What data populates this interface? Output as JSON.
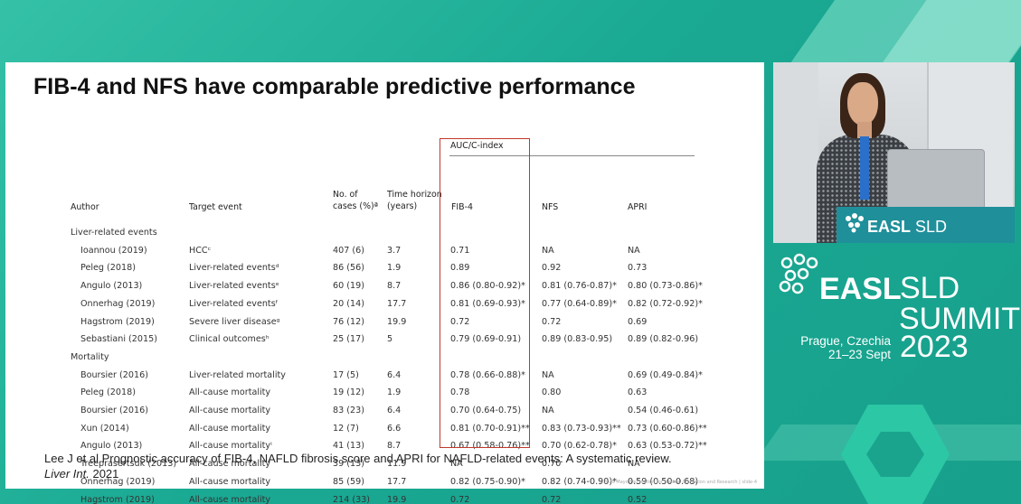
{
  "slide": {
    "title": "FIB-4 and NFS have comparable predictive  performance",
    "headers": {
      "auc_group": "AUC/C-index",
      "author": "Author",
      "target_event": "Target event",
      "cases_line1": "No. of",
      "cases_line2": "cases (%)ª",
      "time_line1": "Time horizon",
      "time_line2": "(years)",
      "fib4": "FIB-4",
      "nfs": "NFS",
      "apri": "APRI"
    },
    "groups": [
      {
        "label": "Liver-related events",
        "rows": [
          {
            "author": "Ioannou (2019)",
            "event": "HCCᶜ",
            "cases": "407 (6)",
            "time": "3.7",
            "fib4": "0.71",
            "nfs": "NA",
            "apri": "NA"
          },
          {
            "author": "Peleg (2018)",
            "event": "Liver-related eventsᵈ",
            "cases": "86 (56)",
            "time": "1.9",
            "fib4": "0.89",
            "nfs": "0.92",
            "apri": "0.73"
          },
          {
            "author": "Angulo (2013)",
            "event": "Liver-related eventsᵉ",
            "cases": "60 (19)",
            "time": "8.7",
            "fib4": "0.86 (0.80-0.92)*",
            "nfs": "0.81 (0.76-0.87)*",
            "apri": "0.80 (0.73-0.86)*"
          },
          {
            "author": "Onnerhag (2019)",
            "event": "Liver-related eventsᶠ",
            "cases": "20 (14)",
            "time": "17.7",
            "fib4": "0.81 (0.69-0.93)*",
            "nfs": "0.77 (0.64-0.89)*",
            "apri": "0.82 (0.72-0.92)*"
          },
          {
            "author": "Hagstrom (2019)",
            "event": "Severe liver diseaseᵍ",
            "cases": "76 (12)",
            "time": "19.9",
            "fib4": "0.72",
            "nfs": "0.72",
            "apri": "0.69"
          },
          {
            "author": "Sebastiani (2015)",
            "event": "Clinical outcomesʰ",
            "cases": "25 (17)",
            "time": "5",
            "fib4": "0.79 (0.69-0.91)",
            "nfs": "0.89 (0.83-0.95)",
            "apri": "0.89 (0.82-0.96)"
          }
        ]
      },
      {
        "label": "Mortality",
        "rows": [
          {
            "author": "Boursier (2016)",
            "event": "Liver-related mortality",
            "cases": "17 (5)",
            "time": "6.4",
            "fib4": "0.78 (0.66-0.88)*",
            "nfs": "NA",
            "apri": "0.69 (0.49-0.84)*"
          },
          {
            "author": "Peleg (2018)",
            "event": "All-cause mortality",
            "cases": "19 (12)",
            "time": "1.9",
            "fib4": "0.78",
            "nfs": "0.80",
            "apri": "0.63"
          },
          {
            "author": "Boursier (2016)",
            "event": "All-cause mortality",
            "cases": "83 (23)",
            "time": "6.4",
            "fib4": "0.70 (0.64-0.75)",
            "nfs": "NA",
            "apri": "0.54 (0.46-0.61)"
          },
          {
            "author": "Xun (2014)",
            "event": "All-cause mortality",
            "cases": "12 (7)",
            "time": "6.6",
            "fib4": "0.81 (0.70-0.91)**",
            "nfs": "0.83 (0.73-0.93)**",
            "apri": "0.73 (0.60-0.86)**"
          },
          {
            "author": "Angulo (2013)",
            "event": "All-cause mortalityⁱ",
            "cases": "41 (13)",
            "time": "8.7",
            "fib4": "0.67 (0.58-0.76)**",
            "nfs": "0.70 (0.62-0.78)*",
            "apri": "0.63 (0.53-0.72)**"
          },
          {
            "author": "Treeprasertsuk (2013)",
            "event": "All-cause mortality",
            "cases": "39 (13)",
            "time": "11.9",
            "fib4": "NA",
            "nfs": "0.70",
            "apri": "NA"
          },
          {
            "author": "Onnerhag (2019)",
            "event": "All-cause mortality",
            "cases": "85 (59)",
            "time": "17.7",
            "fib4": "0.82 (0.75-0.90)*",
            "nfs": "0.82 (0.74-0.90)*",
            "apri": "0.59 (0.50-0.68)"
          },
          {
            "author": "Hagstrom (2019)",
            "event": "All-cause mortality",
            "cases": "214 (33)",
            "time": "19.9",
            "fib4": "0.72",
            "nfs": "0.72",
            "apri": "0.52"
          }
        ]
      }
    ],
    "citation_text": "Lee J et al Prognostic accuracy of FIB-4, NAFLD fibrosis score and APRI for NAFLD-related events: A systematic review.",
    "citation_journal": "Liver Int.",
    "citation_year": " 2021",
    "footer": "©2023 Mayo Foundation for Medical Education and Research  |  slide-4"
  },
  "webcam": {
    "podium_brand": "EASL",
    "podium_sub": "SLD"
  },
  "branding": {
    "org": "EASL",
    "event_line1": "SLD",
    "event_line2": "SUMMIT",
    "year": "2023",
    "city": "Prague, Czechia",
    "dates": "21–23 Sept"
  },
  "colors": {
    "background": "#1aa993",
    "highlight_box": "#c0392b",
    "podium": "#1f8f9a"
  }
}
